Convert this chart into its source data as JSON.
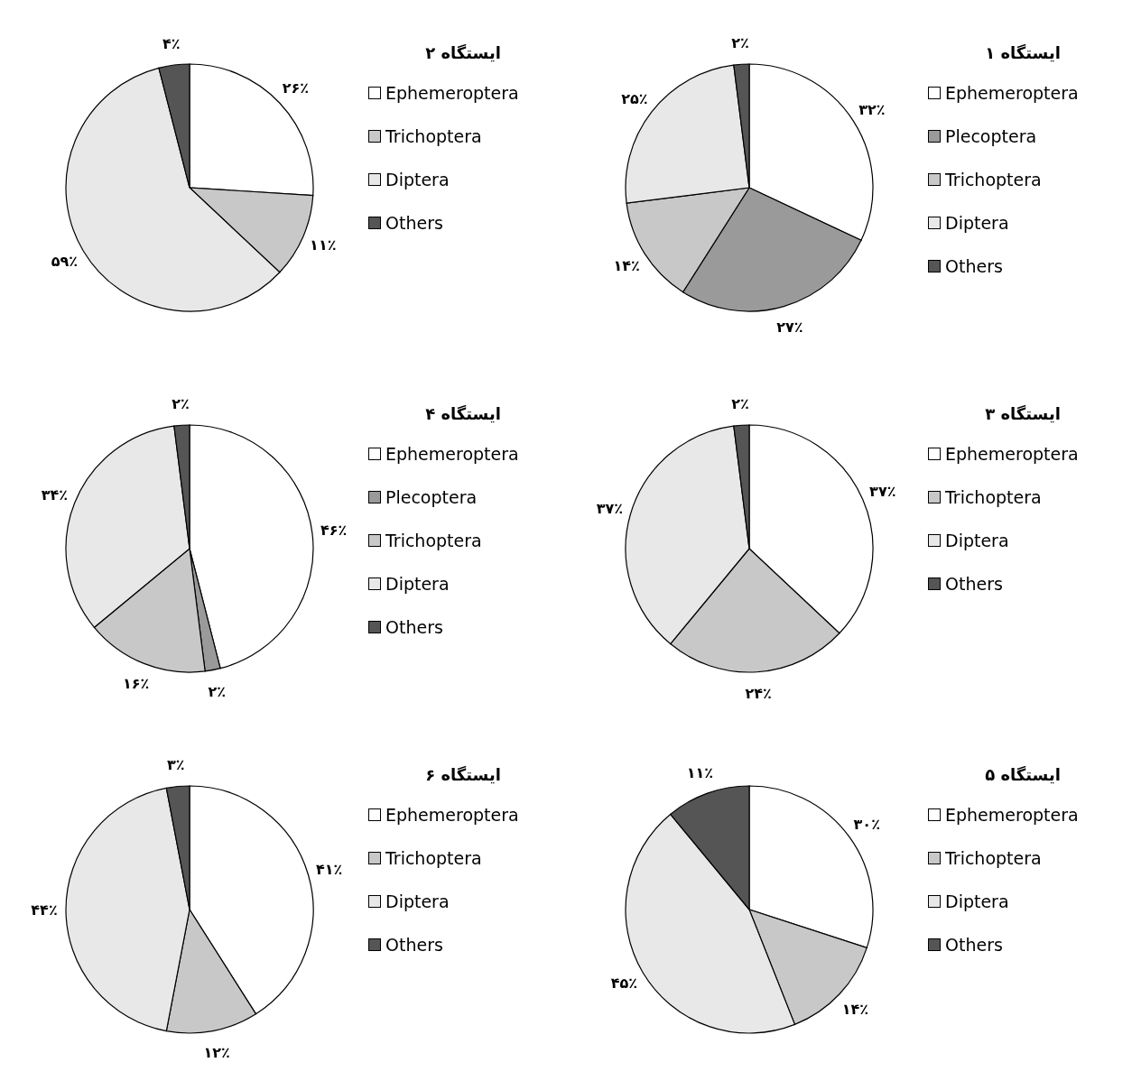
{
  "chart_data": [
    {
      "type": "pie",
      "title": "ایستگاه ۱",
      "categories": [
        "Ephemeroptera",
        "Plecoptera",
        "Trichoptera",
        "Diptera",
        "Others"
      ],
      "values": [
        32,
        27,
        14,
        25,
        2
      ],
      "value_labels": [
        "۳۲٪",
        "۲۷٪",
        "۱۴٪",
        "۲۵٪",
        "۲٪"
      ],
      "colors": [
        "#ffffff",
        "#9a9a9a",
        "#c8c8c8",
        "#e8e8e8",
        "#555555"
      ],
      "legend": "right"
    },
    {
      "type": "pie",
      "title": "ایستگاه ۲",
      "categories": [
        "Ephemeroptera",
        "Trichoptera",
        "Diptera",
        "Others"
      ],
      "values": [
        26,
        11,
        59,
        4
      ],
      "value_labels": [
        "۲۶٪",
        "۱۱٪",
        "۵۹٪",
        "۴٪"
      ],
      "colors": [
        "#ffffff",
        "#c8c8c8",
        "#e8e8e8",
        "#555555"
      ],
      "legend": "right"
    },
    {
      "type": "pie",
      "title": "ایستگاه ۳",
      "categories": [
        "Ephemeroptera",
        "Trichoptera",
        "Diptera",
        "Others"
      ],
      "values": [
        37,
        24,
        37,
        2
      ],
      "value_labels": [
        "۳۷٪",
        "۲۴٪",
        "۳۷٪",
        "۲٪"
      ],
      "colors": [
        "#ffffff",
        "#c8c8c8",
        "#e8e8e8",
        "#555555"
      ],
      "legend": "right"
    },
    {
      "type": "pie",
      "title": "ایستگاه ۴",
      "categories": [
        "Ephemeroptera",
        "Plecoptera",
        "Trichoptera",
        "Diptera",
        "Others"
      ],
      "values": [
        46,
        2,
        16,
        34,
        2
      ],
      "value_labels": [
        "۴۶٪",
        "۲٪",
        "۱۶٪",
        "۳۴٪",
        "۲٪"
      ],
      "colors": [
        "#ffffff",
        "#9a9a9a",
        "#c8c8c8",
        "#e8e8e8",
        "#555555"
      ],
      "legend": "right"
    },
    {
      "type": "pie",
      "title": "ایستگاه ۵",
      "categories": [
        "Ephemeroptera",
        "Trichoptera",
        "Diptera",
        "Others"
      ],
      "values": [
        30,
        14,
        45,
        11
      ],
      "value_labels": [
        "۳۰٪",
        "۱۴٪",
        "۴۵٪",
        "۱۱٪"
      ],
      "colors": [
        "#ffffff",
        "#c8c8c8",
        "#e8e8e8",
        "#555555"
      ],
      "legend": "right"
    },
    {
      "type": "pie",
      "title": "ایستگاه ۶",
      "categories": [
        "Ephemeroptera",
        "Trichoptera",
        "Diptera",
        "Others"
      ],
      "values": [
        41,
        12,
        44,
        3
      ],
      "value_labels": [
        "۴۱٪",
        "۱۲٪",
        "۴۴٪",
        "۳٪"
      ],
      "colors": [
        "#ffffff",
        "#c8c8c8",
        "#e8e8e8",
        "#555555"
      ],
      "legend": "right"
    }
  ]
}
